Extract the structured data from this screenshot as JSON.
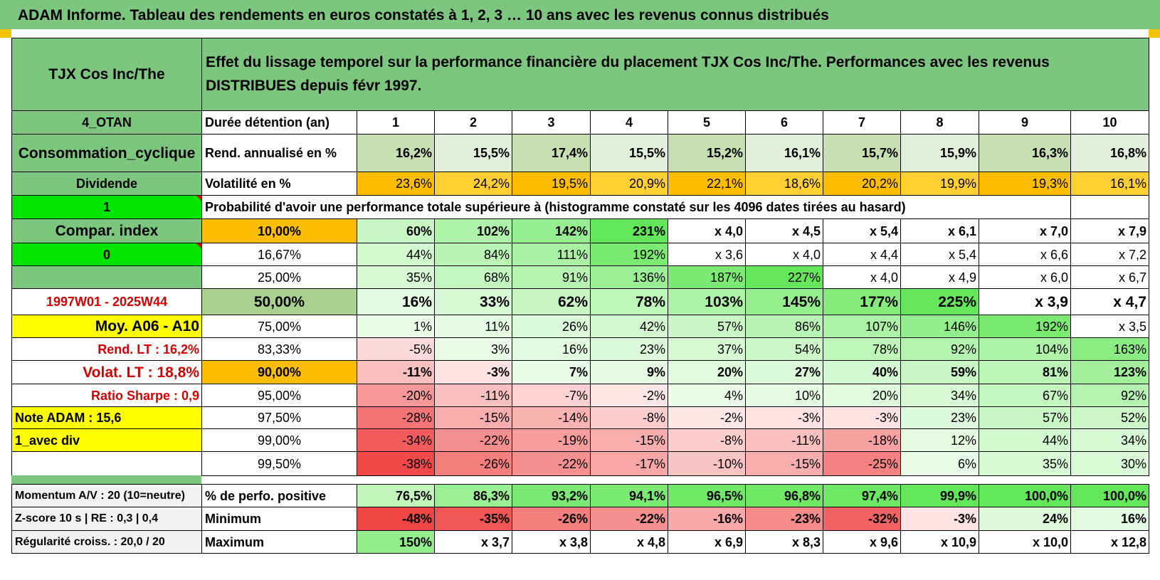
{
  "title": "ADAM Informe. Tableau des rendements en euros constatés à 1, 2, 3 … 10 ans avec les revenus connus distribués",
  "colors": {
    "green": "#7dc67f",
    "orange": "#fdbd00",
    "yellow": "#ffff00",
    "bright_green": "#00e400",
    "label_red": "#d40000"
  },
  "header": {
    "fund_name": "TJX Cos Inc/The",
    "description": "Effet du lissage temporel sur la performance financière du placement TJX Cos Inc/The. Performances avec les revenus DISTRIBUES depuis févr 1997."
  },
  "left_panel": [
    "4_OTAN",
    "Consommation_cyclique",
    "Dividende",
    "1",
    "Compar. index",
    "0",
    "",
    "1997W01 - 2025W44",
    "Moy. A06 - A10",
    "Rend. LT :    16,2%",
    "Volat. LT :    18,8%",
    "Ratio Sharpe :    0,9",
    "Note ADAM : 15,6",
    "1_avec div",
    ""
  ],
  "years_label": "Durée détention (an)",
  "years": [
    "1",
    "2",
    "3",
    "4",
    "5",
    "6",
    "7",
    "8",
    "9",
    "10"
  ],
  "rend": {
    "label": "Rend. annualisé en %",
    "values": [
      "16,2%",
      "15,5%",
      "17,4%",
      "15,5%",
      "15,2%",
      "16,1%",
      "15,7%",
      "15,9%",
      "16,3%",
      "16,8%"
    ]
  },
  "vol": {
    "label": "Volatilité en %",
    "values": [
      "23,6%",
      "24,2%",
      "19,5%",
      "20,9%",
      "22,1%",
      "18,6%",
      "20,2%",
      "19,9%",
      "19,3%",
      "16,1%"
    ]
  },
  "prob_title": "Probabilité d'avoir une performance totale supérieure à (histogramme constaté sur les 4096 dates tirées au hasard)",
  "quantiles": [
    {
      "p": "10,00%",
      "values": [
        "60%",
        "102%",
        "142%",
        "231%",
        "x 4,0",
        "x 4,5",
        "x 5,4",
        "x 6,1",
        "x 7,0",
        "x 7,9"
      ]
    },
    {
      "p": "16,67%",
      "values": [
        "44%",
        "84%",
        "111%",
        "192%",
        "x 3,6",
        "x 4,0",
        "x 4,4",
        "x 5,4",
        "x 6,6",
        "x 7,2"
      ]
    },
    {
      "p": "25,00%",
      "values": [
        "35%",
        "68%",
        "91%",
        "136%",
        "187%",
        "227%",
        "x 4,0",
        "x 4,9",
        "x 6,0",
        "x 6,7"
      ]
    },
    {
      "p": "50,00%",
      "values": [
        "16%",
        "33%",
        "62%",
        "78%",
        "103%",
        "145%",
        "177%",
        "225%",
        "x 3,9",
        "x 4,7"
      ]
    },
    {
      "p": "75,00%",
      "values": [
        "1%",
        "11%",
        "26%",
        "42%",
        "57%",
        "86%",
        "107%",
        "146%",
        "192%",
        "x 3,5"
      ]
    },
    {
      "p": "83,33%",
      "values": [
        "-5%",
        "3%",
        "16%",
        "23%",
        "37%",
        "54%",
        "78%",
        "92%",
        "104%",
        "163%"
      ]
    },
    {
      "p": "90,00%",
      "values": [
        "-11%",
        "-3%",
        "7%",
        "9%",
        "20%",
        "27%",
        "40%",
        "59%",
        "81%",
        "123%"
      ]
    },
    {
      "p": "95,00%",
      "values": [
        "-20%",
        "-11%",
        "-7%",
        "-2%",
        "4%",
        "10%",
        "20%",
        "34%",
        "67%",
        "92%"
      ]
    },
    {
      "p": "97,50%",
      "values": [
        "-28%",
        "-15%",
        "-14%",
        "-8%",
        "-2%",
        "-3%",
        "-3%",
        "23%",
        "57%",
        "52%"
      ]
    },
    {
      "p": "99,00%",
      "values": [
        "-34%",
        "-22%",
        "-19%",
        "-15%",
        "-8%",
        "-11%",
        "-18%",
        "12%",
        "44%",
        "34%"
      ]
    },
    {
      "p": "99,50%",
      "values": [
        "-38%",
        "-26%",
        "-22%",
        "-17%",
        "-10%",
        "-15%",
        "-25%",
        "6%",
        "35%",
        "30%"
      ]
    }
  ],
  "bottom": [
    {
      "left": "Momentum A/V : 20 (10=neutre)",
      "label": "% de perfo. positive",
      "values": [
        "76,5%",
        "86,3%",
        "93,2%",
        "94,1%",
        "96,5%",
        "96,8%",
        "97,4%",
        "99,9%",
        "100,0%",
        "100,0%"
      ]
    },
    {
      "left": "Z-score 10 s | RE : 0,3 | 0,4",
      "label": "Minimum",
      "values": [
        "-48%",
        "-35%",
        "-26%",
        "-22%",
        "-16%",
        "-23%",
        "-32%",
        "-3%",
        "24%",
        "16%"
      ]
    },
    {
      "left": "Régularité croiss. : 20,0 / 20",
      "label": "Maximum",
      "values": [
        "150%",
        "x 3,7",
        "x 3,8",
        "x 4,8",
        "x 6,9",
        "x 8,3",
        "x 9,6",
        "x 10,9",
        "x 10,0",
        "x 12,8"
      ]
    }
  ]
}
